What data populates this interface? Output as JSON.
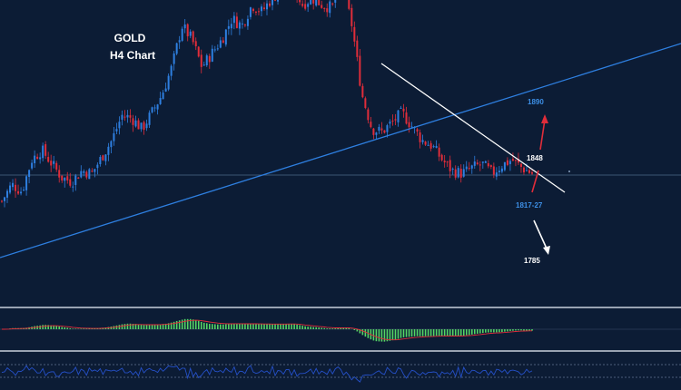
{
  "chart_data": {
    "type": "candlestick",
    "title": "GOLD",
    "subtitle": "H4 Chart",
    "levels": [
      {
        "label": "1890",
        "value": 1890,
        "color": "#3d8fe6"
      },
      {
        "label": "1848",
        "value": 1848,
        "color": "#ffffff"
      },
      {
        "label": "1817-27",
        "value": 1822,
        "color": "#3d8fe6"
      },
      {
        "label": "1785",
        "value": 1785,
        "color": "#ffffff"
      }
    ],
    "price_path": [
      1818,
      1830,
      1825,
      1848,
      1855,
      1845,
      1835,
      1832,
      1840,
      1838,
      1850,
      1862,
      1880,
      1878,
      1870,
      1882,
      1895,
      1915,
      1945,
      1935,
      1915,
      1925,
      1935,
      1950,
      1945,
      1960,
      1955,
      1965,
      1970,
      1975,
      1960,
      1965,
      1960,
      1958,
      1975,
      1945,
      1895,
      1870,
      1868,
      1875,
      1882,
      1872,
      1862,
      1858,
      1848,
      1840,
      1838,
      1842,
      1845,
      1838,
      1844,
      1848,
      1842,
      1838
    ],
    "colors": {
      "bull": "#2e7fe0",
      "bear": "#e02d3a",
      "trend": "#2e7fe0",
      "resistance": "#ffffff",
      "osc": "#55d665",
      "rsi": "#2550c8",
      "target_up": "#e02d3a",
      "target_down": "#ffffff"
    }
  }
}
